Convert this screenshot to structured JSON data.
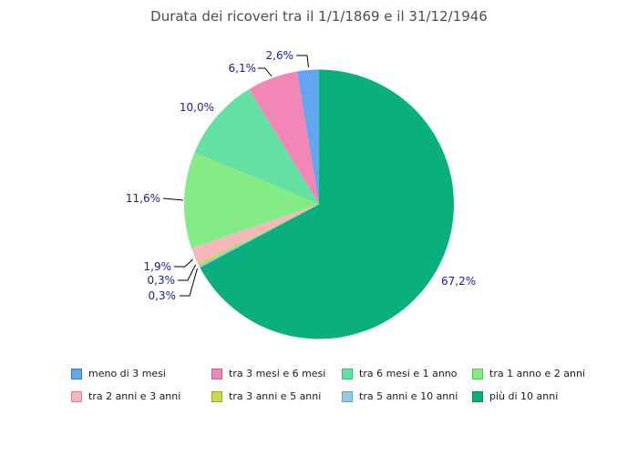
{
  "title": "Durata dei ricoveri tra il 1/1/1869 e il 31/12/1946",
  "colors": {
    "background": "#ffffff",
    "title_text": "#4d4d4d",
    "pct_label_text": "#1c1c94",
    "legend_text": "#1a1a1a",
    "leader_line": "#000000"
  },
  "chart_data": {
    "type": "pie",
    "title": "Durata dei ricoveri tra il 1/1/1869 e il 31/12/1946",
    "direction": "counterclockwise",
    "start_position": "12-oclock",
    "legend_position": "bottom",
    "grid": "off",
    "slices": [
      {
        "label": "meno di 3 mesi",
        "value_pct": 2.6,
        "pct_label": "2,6%",
        "color": "#61a6f0",
        "border": "#3f79c0"
      },
      {
        "label": "tra 3 mesi e 6 mesi",
        "value_pct": 6.1,
        "pct_label": "6,1%",
        "color": "#f287b7",
        "border": "#c25e91"
      },
      {
        "label": "tra 6 mesi e 1 anno",
        "value_pct": 10.0,
        "pct_label": "10,0%",
        "color": "#63e1a3",
        "border": "#3cb47e"
      },
      {
        "label": "tra 1 anno e 2 anni",
        "value_pct": 11.6,
        "pct_label": "11,6%",
        "color": "#85ec85",
        "border": "#58c05b"
      },
      {
        "label": "tra 2 anni e 3 anni",
        "value_pct": 1.9,
        "pct_label": "1,9%",
        "color": "#f5b6bc",
        "border": "#c68b92"
      },
      {
        "label": "tra 3 anni e 5 anni",
        "value_pct": 0.3,
        "pct_label": "0,3%",
        "color": "#ccd944",
        "border": "#9aa62e"
      },
      {
        "label": "tra 5 anni e 10 anni",
        "value_pct": 0.3,
        "pct_label": "0,3%",
        "color": "#8fcbeb",
        "border": "#639dbd"
      },
      {
        "label": "più di 10 anni",
        "value_pct": 67.2,
        "pct_label": "67,2%",
        "color": "#0baf7d",
        "border": "#08845e"
      }
    ]
  }
}
